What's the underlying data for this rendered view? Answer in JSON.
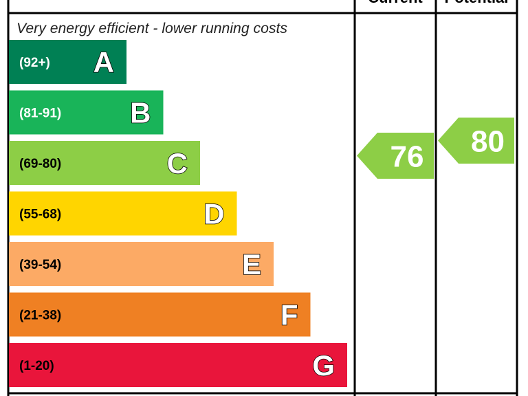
{
  "chart_data": {
    "type": "bar",
    "title": "",
    "column_headers": {
      "current": "Current",
      "potential": "Potential"
    },
    "top_note": "Very energy efficient - lower running costs",
    "bands": [
      {
        "letter": "A",
        "range": "(92+)",
        "color": "#008054",
        "range_text_color": "#ffffff"
      },
      {
        "letter": "B",
        "range": "(81-91)",
        "color": "#19b459",
        "range_text_color": "#ffffff"
      },
      {
        "letter": "C",
        "range": "(69-80)",
        "color": "#8dce46",
        "range_text_color": "#000000"
      },
      {
        "letter": "D",
        "range": "(55-68)",
        "color": "#ffd500",
        "range_text_color": "#000000"
      },
      {
        "letter": "E",
        "range": "(39-54)",
        "color": "#fcaa65",
        "range_text_color": "#000000"
      },
      {
        "letter": "F",
        "range": "(21-38)",
        "color": "#ef8023",
        "range_text_color": "#000000"
      },
      {
        "letter": "G",
        "range": "(1-20)",
        "color": "#e9153b",
        "range_text_color": "#000000"
      }
    ],
    "current": {
      "value": 76,
      "band": "C",
      "color": "#8dce46"
    },
    "potential": {
      "value": 80,
      "band": "C",
      "color": "#8dce46"
    }
  }
}
